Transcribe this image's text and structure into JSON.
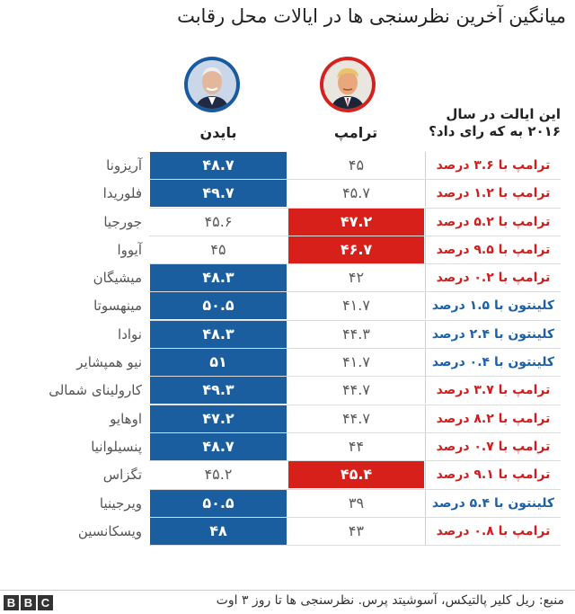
{
  "title": "میانگین آخرین نظرسنجی ها در ایالات محل رقابت",
  "headers": {
    "biden": "بایدن",
    "trump": "ترامپ",
    "vote_2016": "این ایالت در سال ۲۰۱۶ به که رای داد؟"
  },
  "colors": {
    "biden": "#1a5ea0",
    "trump": "#d7201a",
    "republican_text": "#d01e1e",
    "democrat_text": "#1c61a8"
  },
  "chart_data": {
    "type": "table",
    "columns": [
      "state",
      "biden",
      "trump",
      "vote_2016"
    ],
    "rows": [
      {
        "state": "آریزونا",
        "biden": "۴۸.۷",
        "trump": "۴۵",
        "leader": "biden",
        "result": "ترامپ با ۳.۶ درصد",
        "party": "r"
      },
      {
        "state": "فلوریدا",
        "biden": "۴۹.۷",
        "trump": "۴۵.۷",
        "leader": "biden",
        "result": "ترامپ با ۱.۲ درصد",
        "party": "r"
      },
      {
        "state": "جورجیا",
        "biden": "۴۵.۶",
        "trump": "۴۷.۲",
        "leader": "trump",
        "result": "ترامپ با ۵.۲ درصد",
        "party": "r"
      },
      {
        "state": "آیووا",
        "biden": "۴۵",
        "trump": "۴۶.۷",
        "leader": "trump",
        "result": "ترامپ با ۹.۵ درصد",
        "party": "r"
      },
      {
        "state": "میشیگان",
        "biden": "۴۸.۳",
        "trump": "۴۲",
        "leader": "biden",
        "result": "ترامپ با ۰.۲ درصد",
        "party": "r"
      },
      {
        "state": "مینهسوتا",
        "biden": "۵۰.۵",
        "trump": "۴۱.۷",
        "leader": "biden",
        "result": "کلینتون با ۱.۵ درصد",
        "party": "d"
      },
      {
        "state": "نوادا",
        "biden": "۴۸.۳",
        "trump": "۴۴.۳",
        "leader": "biden",
        "result": "کلینتون با ۲.۴ درصد",
        "party": "d"
      },
      {
        "state": "نیو همپشایر",
        "biden": "۵۱",
        "trump": "۴۱.۷",
        "leader": "biden",
        "result": "کلینتون با ۰.۴ درصد",
        "party": "d"
      },
      {
        "state": "کارولینای شمالی",
        "biden": "۴۹.۳",
        "trump": "۴۴.۷",
        "leader": "biden",
        "result": "ترامپ با ۳.۷ درصد",
        "party": "r"
      },
      {
        "state": "اوهایو",
        "biden": "۴۷.۲",
        "trump": "۴۴.۷",
        "leader": "biden",
        "result": "ترامپ با ۸.۲ درصد",
        "party": "r"
      },
      {
        "state": "پنسیلوانیا",
        "biden": "۴۸.۷",
        "trump": "۴۴",
        "leader": "biden",
        "result": "ترامپ با ۰.۷ درصد",
        "party": "r"
      },
      {
        "state": "تگزاس",
        "biden": "۴۵.۲",
        "trump": "۴۵.۴",
        "leader": "trump",
        "result": "ترامپ با ۹.۱ درصد",
        "party": "r"
      },
      {
        "state": "ویرجینیا",
        "biden": "۵۰.۵",
        "trump": "۳۹",
        "leader": "biden",
        "result": "کلینتون با ۵.۴ درصد",
        "party": "d"
      },
      {
        "state": "ویسکانسین",
        "biden": "۴۸",
        "trump": "۴۳",
        "leader": "biden",
        "result": "ترامپ با ۰.۸ درصد",
        "party": "r"
      }
    ]
  },
  "footer": {
    "logo": [
      "B",
      "B",
      "C"
    ],
    "source": "منبع: ریل کلیر پالتیکس، آسوشیتد پرس. نظرسنجی ها تا روز ۳ اوت"
  }
}
